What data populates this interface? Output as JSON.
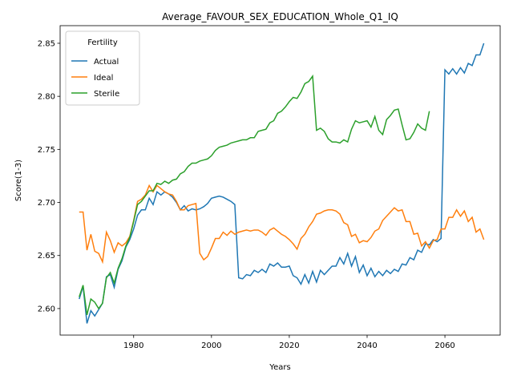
{
  "chart_data": {
    "type": "line",
    "title": "Average_FAVOUR_SEX_EDUCATION_Whole_Q1_IQ",
    "x_label": "Years",
    "y_label": "Score(1-3)",
    "legend_title": "Fertility",
    "legend_loc": "upper left",
    "x": [
      1966,
      1967,
      1968,
      1969,
      1970,
      1971,
      1972,
      1973,
      1974,
      1975,
      1976,
      1977,
      1978,
      1979,
      1980,
      1981,
      1982,
      1983,
      1984,
      1985,
      1986,
      1987,
      1988,
      1989,
      1990,
      1991,
      1992,
      1993,
      1994,
      1995,
      1996,
      1997,
      1998,
      1999,
      2000,
      2001,
      2002,
      2003,
      2004,
      2005,
      2006,
      2007,
      2008,
      2009,
      2010,
      2011,
      2012,
      2013,
      2014,
      2015,
      2016,
      2017,
      2018,
      2019,
      2020,
      2021,
      2022,
      2023,
      2024,
      2025,
      2026,
      2027,
      2028,
      2029,
      2030,
      2031,
      2032,
      2033,
      2034,
      2035,
      2036,
      2037,
      2038,
      2039,
      2040,
      2041,
      2042,
      2043,
      2044,
      2045,
      2046,
      2047,
      2048,
      2049,
      2050,
      2051,
      2052,
      2053,
      2054,
      2055,
      2056,
      2057,
      2058,
      2059,
      2060,
      2061,
      2062,
      2063,
      2064,
      2065,
      2066,
      2067,
      2068,
      2069,
      2070
    ],
    "series": [
      {
        "name": "Actual",
        "color": "#1f77b4",
        "values": [
          2.609,
          2.621,
          2.586,
          2.598,
          2.593,
          2.599,
          2.605,
          2.63,
          2.632,
          2.62,
          2.637,
          2.645,
          2.658,
          2.665,
          2.675,
          2.688,
          2.693,
          2.693,
          2.704,
          2.698,
          2.71,
          2.707,
          2.71,
          2.708,
          2.705,
          2.7,
          2.693,
          2.697,
          2.692,
          2.694,
          2.693,
          2.694,
          2.696,
          2.699,
          2.704,
          2.705,
          2.706,
          2.705,
          2.703,
          2.701,
          2.698,
          2.629,
          2.628,
          2.632,
          2.631,
          2.636,
          2.634,
          2.637,
          2.634,
          2.642,
          2.64,
          2.643,
          2.639,
          2.639,
          2.64,
          2.631,
          2.629,
          2.623,
          2.632,
          2.624,
          2.635,
          2.625,
          2.636,
          2.632,
          2.636,
          2.64,
          2.64,
          2.648,
          2.642,
          2.652,
          2.64,
          2.649,
          2.634,
          2.641,
          2.631,
          2.638,
          2.63,
          2.635,
          2.631,
          2.636,
          2.633,
          2.637,
          2.635,
          2.642,
          2.641,
          2.648,
          2.646,
          2.655,
          2.653,
          2.661,
          2.66,
          2.665,
          2.663,
          2.666,
          2.825,
          2.821,
          2.826,
          2.821,
          2.827,
          2.822,
          2.831,
          2.829,
          2.839,
          2.839,
          2.85
        ]
      },
      {
        "name": "Ideal",
        "color": "#ff7f0e",
        "values": [
          2.691,
          2.691,
          2.655,
          2.67,
          2.654,
          2.652,
          2.644,
          2.672,
          2.664,
          2.653,
          2.662,
          2.659,
          2.662,
          2.668,
          2.683,
          2.701,
          2.703,
          2.707,
          2.716,
          2.71,
          2.716,
          2.713,
          2.71,
          2.708,
          2.707,
          2.701,
          2.693,
          2.693,
          2.697,
          2.698,
          2.699,
          2.652,
          2.646,
          2.649,
          2.657,
          2.666,
          2.666,
          2.672,
          2.669,
          2.673,
          2.67,
          2.672,
          2.673,
          2.674,
          2.673,
          2.674,
          2.674,
          2.672,
          2.669,
          2.674,
          2.676,
          2.673,
          2.67,
          2.668,
          2.665,
          2.661,
          2.656,
          2.666,
          2.67,
          2.677,
          2.682,
          2.689,
          2.69,
          2.692,
          2.693,
          2.693,
          2.692,
          2.689,
          2.681,
          2.679,
          2.668,
          2.67,
          2.662,
          2.664,
          2.663,
          2.667,
          2.673,
          2.675,
          2.683,
          2.687,
          2.691,
          2.695,
          2.692,
          2.693,
          2.682,
          2.682,
          2.67,
          2.671,
          2.659,
          2.663,
          2.657,
          2.664,
          2.665,
          2.675,
          2.675,
          2.686,
          2.686,
          2.693,
          2.687,
          2.692,
          2.682,
          2.686,
          2.672,
          2.675,
          2.665
        ]
      },
      {
        "name": "Sterile",
        "color": "#2ca02c",
        "values": [
          2.611,
          2.622,
          2.594,
          2.609,
          2.606,
          2.6,
          2.605,
          2.629,
          2.634,
          2.624,
          2.638,
          2.647,
          2.659,
          2.667,
          2.682,
          2.698,
          2.701,
          2.706,
          2.711,
          2.711,
          2.718,
          2.717,
          2.72,
          2.718,
          2.721,
          2.722,
          2.727,
          2.729,
          2.734,
          2.737,
          2.737,
          2.739,
          2.74,
          2.741,
          2.744,
          2.749,
          2.752,
          2.753,
          2.754,
          2.756,
          2.757,
          2.758,
          2.759,
          2.759,
          2.761,
          2.761,
          2.767,
          2.768,
          2.769,
          2.775,
          2.777,
          2.784,
          2.786,
          2.79,
          2.795,
          2.799,
          2.798,
          2.804,
          2.812,
          2.814,
          2.819,
          2.768,
          2.77,
          2.767,
          2.76,
          2.757,
          2.757,
          2.756,
          2.759,
          2.757,
          2.769,
          2.777,
          2.775,
          2.776,
          2.777,
          2.771,
          2.781,
          2.768,
          2.764,
          2.778,
          2.782,
          2.787,
          2.788,
          2.773,
          2.759,
          2.76,
          2.766,
          2.774,
          2.77,
          2.768,
          2.786,
          null,
          null,
          null,
          null,
          null,
          null,
          null,
          null,
          null,
          null,
          null,
          null,
          null,
          null
        ]
      }
    ],
    "xlim": [
      1961.1,
      2074.2
    ],
    "ylim": [
      2.575,
      2.8666
    ],
    "xticks": [
      1980,
      2000,
      2020,
      2040,
      2060
    ],
    "yticks": [
      {
        "value": 2.6,
        "label": "2.60"
      },
      {
        "value": 2.65,
        "label": "2.65"
      },
      {
        "value": 2.7,
        "label": "2.70"
      },
      {
        "value": 2.75,
        "label": "2.75"
      },
      {
        "value": 2.8,
        "label": "2.80"
      },
      {
        "value": 2.85,
        "label": "2.85"
      }
    ]
  }
}
